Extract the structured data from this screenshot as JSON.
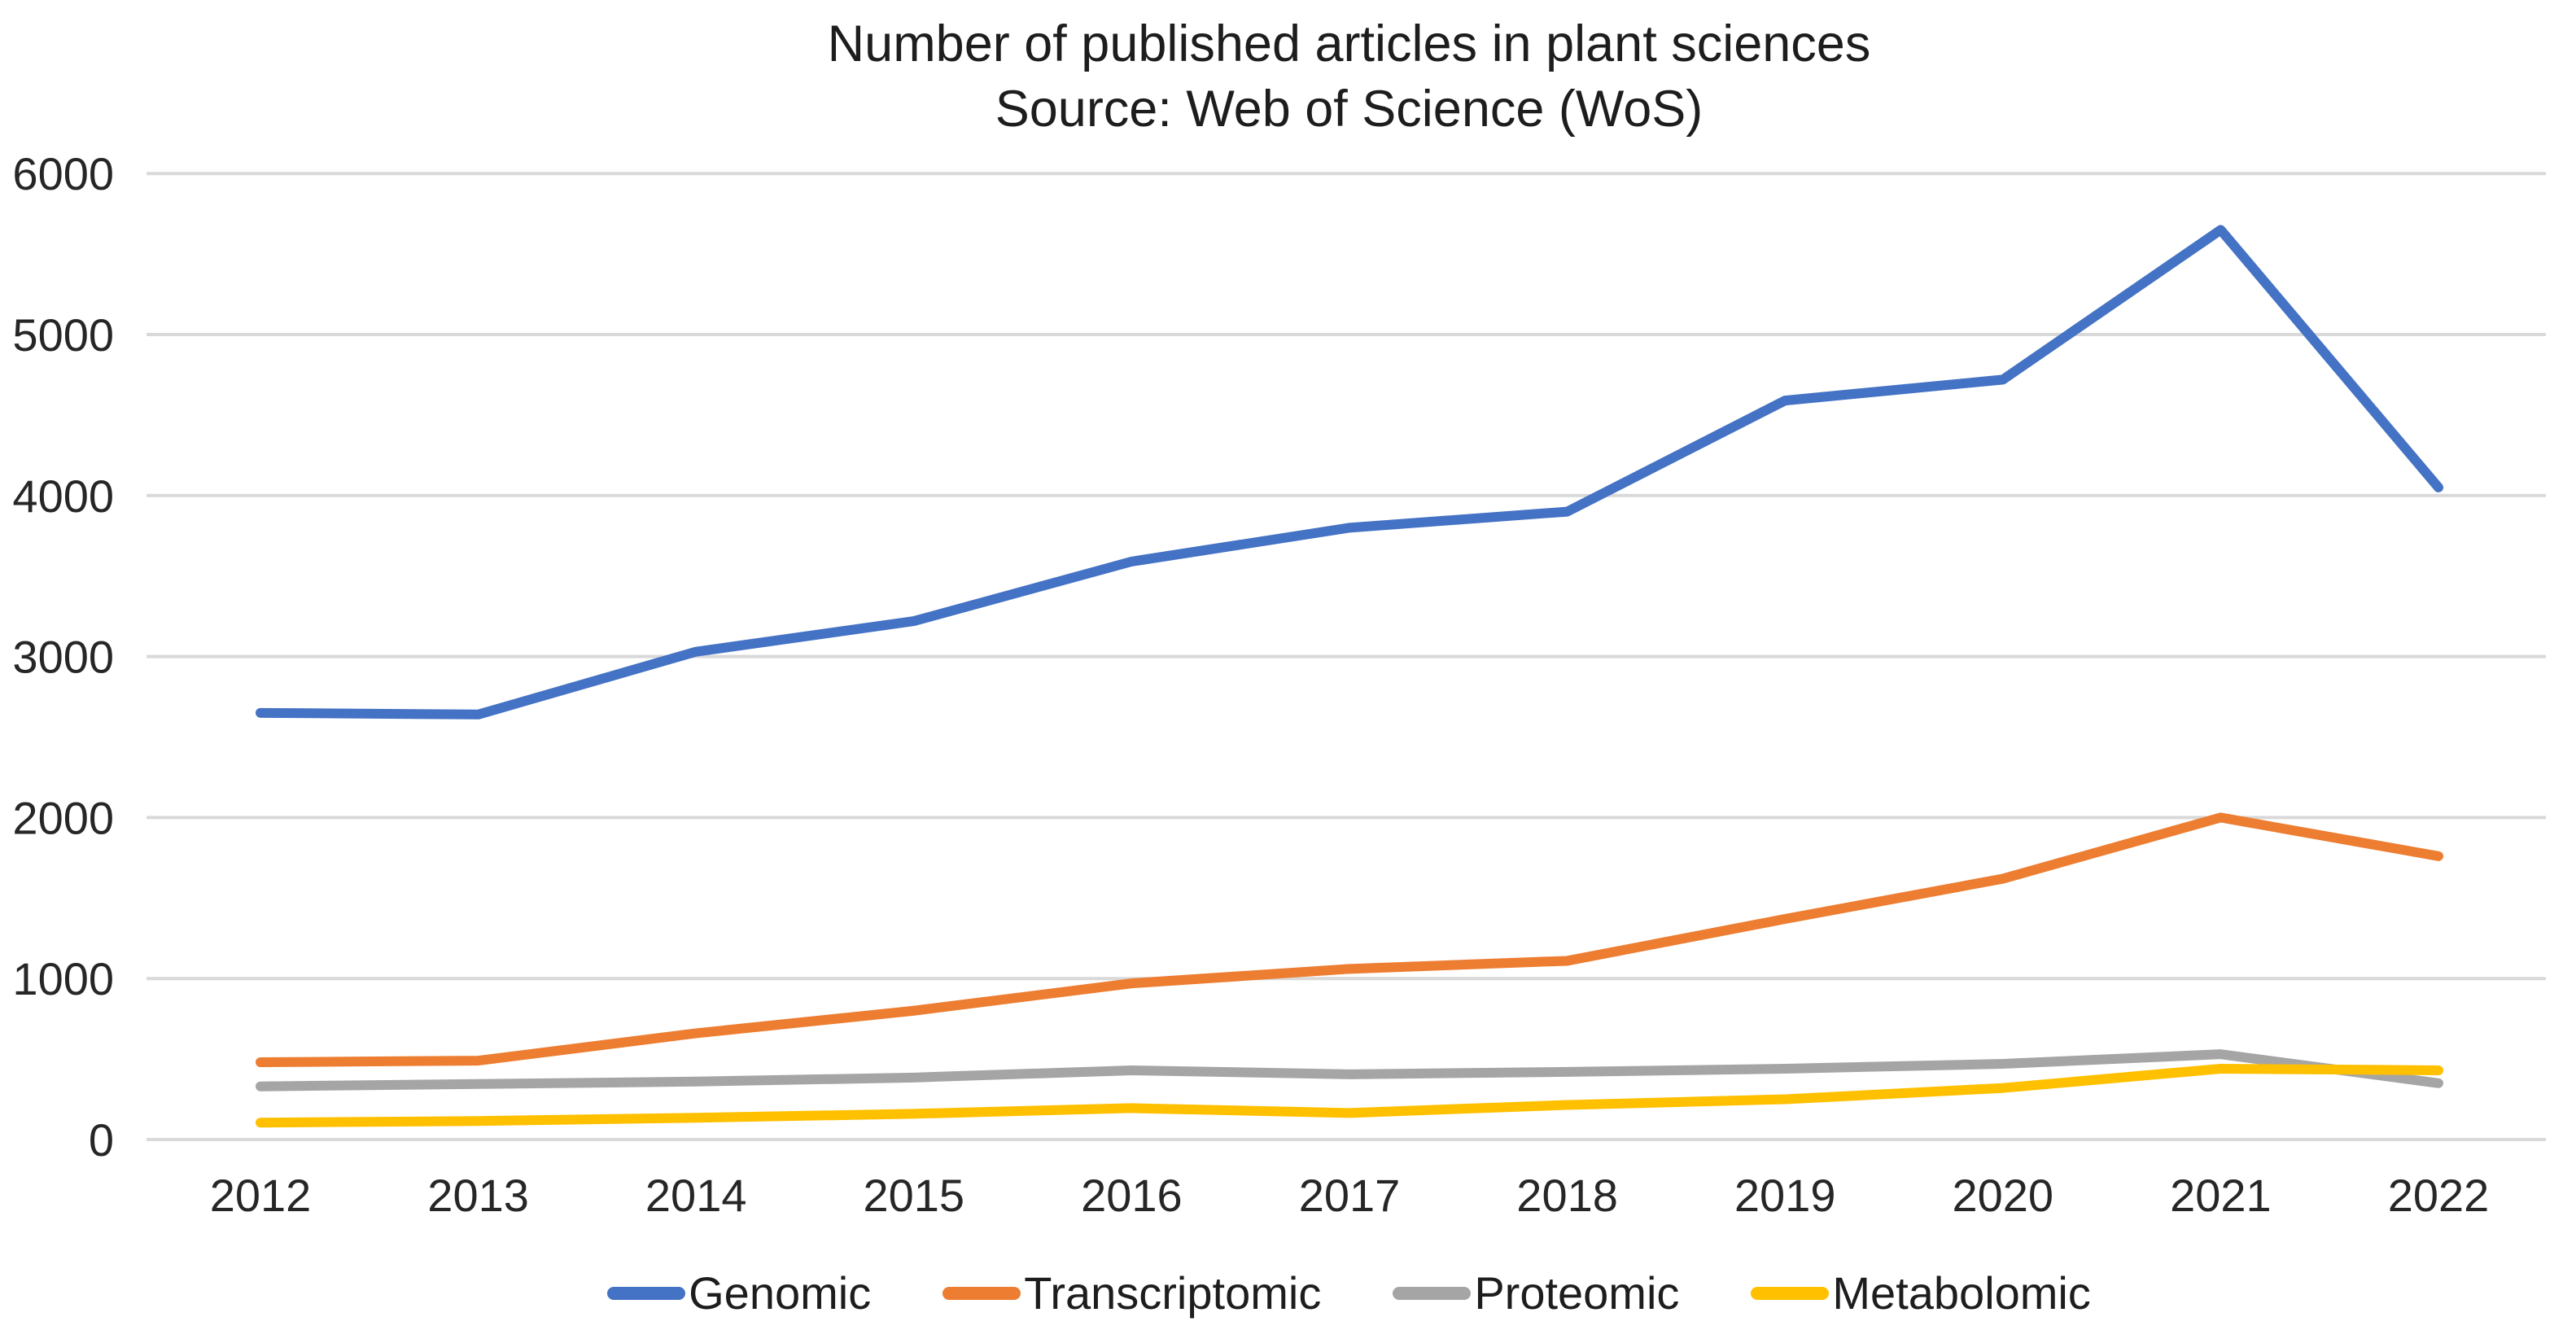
{
  "chart": {
    "title": "Number of published articles in plant sciences",
    "subtitle": "Source: Web of Science (WoS)"
  },
  "chart_data": {
    "type": "line",
    "title": "Number of published articles in plant sciences",
    "subtitle": "Source: Web of Science (WoS)",
    "categories": [
      "2012",
      "2013",
      "2014",
      "2015",
      "2016",
      "2017",
      "2018",
      "2019",
      "2020",
      "2021",
      "2022"
    ],
    "y_ticks": [
      0,
      1000,
      2000,
      3000,
      4000,
      5000,
      6000
    ],
    "ylim": [
      0,
      6000
    ],
    "grid": "horizontal",
    "legend_position": "bottom",
    "grid_color": "#d9d9d9",
    "text_color": "#262626",
    "series": [
      {
        "name": "Genomic",
        "color": "#4472C4",
        "values": [
          2650,
          2640,
          3030,
          3220,
          3590,
          3800,
          3900,
          4590,
          4720,
          5650,
          4050
        ]
      },
      {
        "name": "Transcriptomic",
        "color": "#ED7D31",
        "values": [
          480,
          490,
          660,
          800,
          970,
          1060,
          1110,
          1370,
          1620,
          2000,
          1760
        ]
      },
      {
        "name": "Proteomic",
        "color": "#A5A5A5",
        "values": [
          330,
          345,
          360,
          385,
          430,
          405,
          420,
          440,
          470,
          530,
          350
        ]
      },
      {
        "name": "Metabolomic",
        "color": "#FFC000",
        "values": [
          105,
          115,
          135,
          160,
          195,
          165,
          215,
          250,
          320,
          440,
          430
        ]
      }
    ]
  }
}
